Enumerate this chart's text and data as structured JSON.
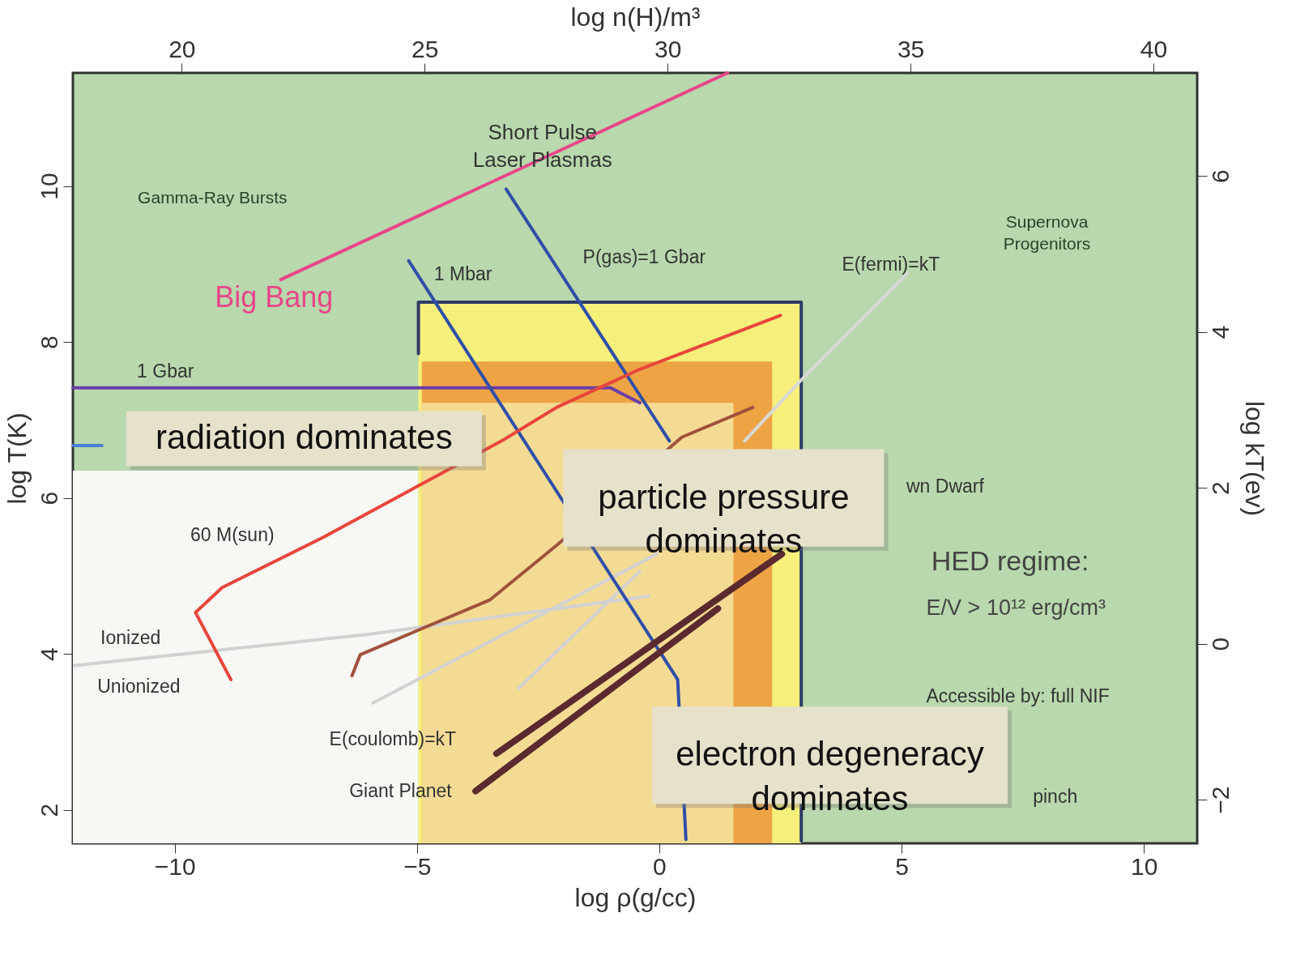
{
  "chart_data": {
    "type": "line",
    "xlabel": "log ρ(g/cc)",
    "ylabel": "log T(K)",
    "x2label": "log n(H)/m³",
    "y2label": "log kT(ev)",
    "xlim": [
      -12.1,
      11.1
    ],
    "xticks": [
      -10,
      -5,
      0,
      5,
      10
    ],
    "ylim": [
      1.57,
      11.45
    ],
    "yticks": [
      2,
      4,
      6,
      8,
      10
    ],
    "x2lim": [
      17.76,
      40.9
    ],
    "x2ticks": [
      20,
      25,
      30,
      35,
      40
    ],
    "y2lim": [
      -2.56,
      7.32
    ],
    "y2ticks": [
      -2,
      0,
      2,
      4,
      6
    ],
    "grid": false,
    "series": [
      {
        "type": "area",
        "color": "#f7f7f4",
        "x": [
          -12.1,
          -4.97
        ],
        "values": [
          6.35,
          6.35
        ]
      },
      {
        "type": "area",
        "color": "#f6ef7c",
        "x": [
          -4.97,
          2.93
        ],
        "values": [
          8.51,
          8.51
        ]
      },
      {
        "type": "area",
        "color": "#eea445",
        "x": [
          -4.9,
          2.33
        ],
        "values": [
          7.75,
          7.75
        ]
      },
      {
        "type": "area",
        "color": "#f4db94",
        "x": [
          -4.9,
          1.53
        ],
        "values": [
          7.22,
          7.22
        ]
      },
      {
        "color": "#2e3b66",
        "x": [
          2.93,
          2.93,
          -4.97,
          -4.97
        ],
        "values": [
          1.6,
          8.51,
          8.51,
          7.85
        ]
      },
      {
        "color": "#d2d2d2",
        "x": [
          -12.07,
          -6.0,
          -0.22
        ],
        "values": [
          3.85,
          4.25,
          4.74
        ]
      },
      {
        "color": "#d2d2d2",
        "x": [
          -5.91,
          -0.05
        ],
        "values": [
          3.37,
          5.28
        ]
      },
      {
        "color": "#d2d2d2",
        "x": [
          -2.9,
          -0.4
        ],
        "values": [
          3.56,
          5.06
        ]
      },
      {
        "color": "#d8d8d8",
        "x": [
          1.76,
          2.88,
          5.12
        ],
        "values": [
          6.73,
          7.48,
          8.88
        ]
      },
      {
        "color": "#e8458a",
        "x": [
          -7.81,
          -3.67,
          1.41
        ],
        "values": [
          8.8,
          9.99,
          11.45
        ]
      },
      {
        "color": "#6a3fa8",
        "x": [
          -12.1,
          -1.0,
          -0.4
        ],
        "values": [
          7.41,
          7.41,
          7.22
        ]
      },
      {
        "color": "#4a7fd0",
        "x": [
          -12.1,
          -11.5
        ],
        "values": [
          6.67,
          6.67
        ]
      },
      {
        "color": "#2f4fa8",
        "x": [
          -5.17,
          -3.5,
          0.38,
          0.55
        ],
        "values": [
          9.04,
          7.42,
          3.67,
          1.62
        ]
      },
      {
        "color": "#2f4fa8",
        "x": [
          -3.16,
          0.21
        ],
        "values": [
          9.96,
          6.73
        ]
      },
      {
        "color": "#e8453c",
        "x": [
          -8.84,
          -9.57,
          -9.02,
          -6.95,
          -3.2,
          -2.12,
          -0.4,
          2.5
        ],
        "values": [
          3.67,
          4.53,
          4.85,
          5.49,
          6.75,
          7.16,
          7.65,
          8.34
        ]
      },
      {
        "color": "#a0523c",
        "x": [
          -6.34,
          -6.17,
          -3.5,
          -2.12,
          0.47,
          1.93
        ],
        "values": [
          3.72,
          3.99,
          4.69,
          5.39,
          6.78,
          7.16
        ]
      },
      {
        "color": "#5a2a2e",
        "x": [
          -3.79,
          1.21
        ],
        "values": [
          2.24,
          4.58
        ]
      },
      {
        "color": "#5a2a2e",
        "x": [
          -3.36,
          2.53
        ],
        "values": [
          2.72,
          5.28
        ]
      }
    ],
    "annotations": [
      "Gamma-Ray Bursts",
      "Short Pulse\nLaser Plasmas",
      "Supernova\nProgenitors",
      "radiation dominates",
      "particle pressure\ndominates",
      "electron degeneracy\ndominates",
      "HED regime:",
      "E/V > 10¹² erg/cm³",
      "Big Bang",
      "1 Gbar",
      "1 Mbar",
      "P(gas)=1 Gbar",
      "E(fermi)=kT",
      "wn Dwarf",
      "60 M(sun)",
      "Ionized",
      "Unionized",
      "E(coulomb)=kT",
      "Giant Planet",
      "Accessible by: full NIF",
      "pinch"
    ]
  }
}
